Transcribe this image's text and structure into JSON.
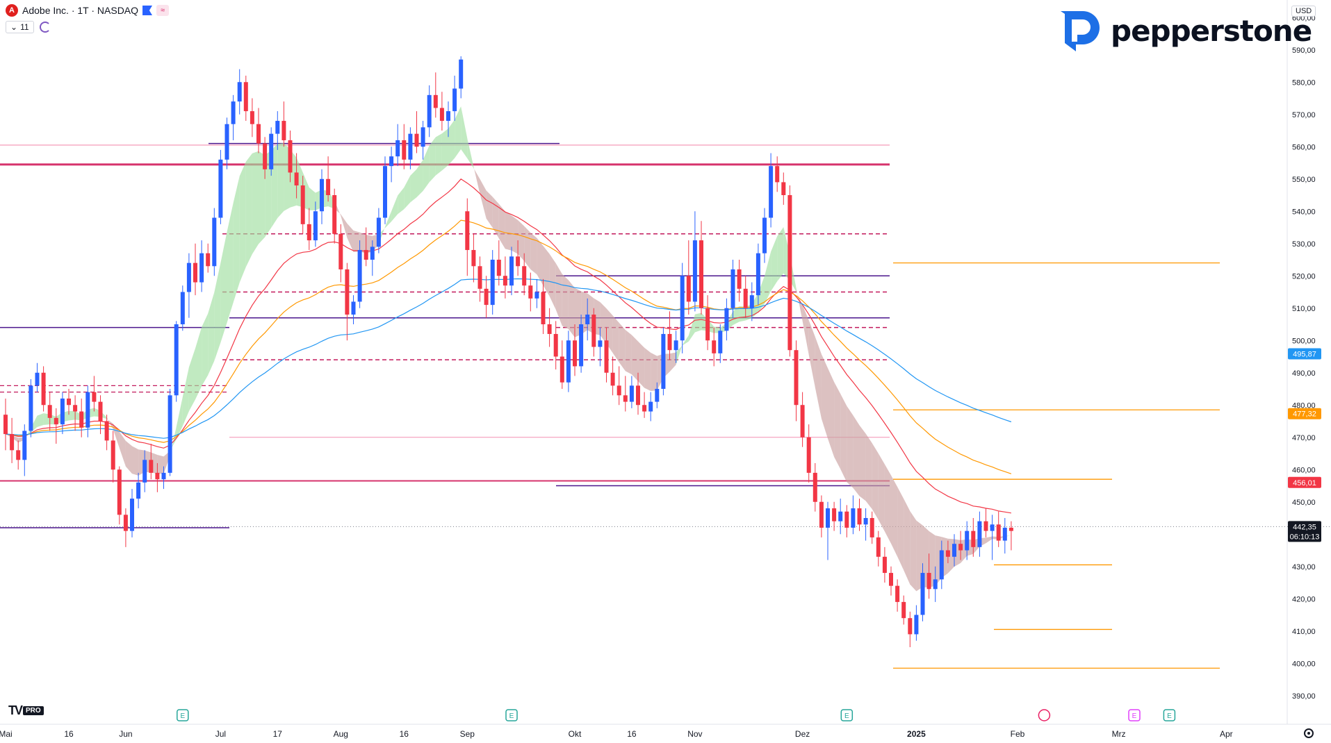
{
  "header": {
    "symbol_icon_letter": "A",
    "title": "Adobe Inc. · 1T · NASDAQ",
    "indicator_count": "11"
  },
  "currency": "USD",
  "brand": "pepperstone",
  "tv_pro": "PRO",
  "colors": {
    "up": "#2962ff",
    "down": "#f23645",
    "ma_red": "#f23645",
    "ma_orange": "#ff9800",
    "ma_blue": "#2196f3",
    "purple": "#4a148c",
    "magenta": "#c2185b",
    "band_green": "#9fdf9f",
    "band_red": "#c9a0a0"
  },
  "chart_data": {
    "type": "candlestick",
    "ylim": [
      385,
      605
    ],
    "y_ticks": [
      "600,00",
      "590,00",
      "580,00",
      "570,00",
      "560,00",
      "550,00",
      "540,00",
      "530,00",
      "520,00",
      "510,00",
      "500,00",
      "490,00",
      "480,00",
      "470,00",
      "460,00",
      "450,00",
      "440,00",
      "430,00",
      "420,00",
      "410,00",
      "400,00",
      "390,00"
    ],
    "y_tick_values": [
      600,
      590,
      580,
      570,
      560,
      550,
      540,
      530,
      520,
      510,
      500,
      490,
      480,
      470,
      460,
      450,
      440,
      430,
      420,
      410,
      400,
      390
    ],
    "x_labels": [
      "Mai",
      "16",
      "Jun",
      "Jul",
      "17",
      "Aug",
      "16",
      "Sep",
      "Okt",
      "16",
      "Nov",
      "Dez",
      "2025",
      "Feb",
      "Mrz",
      "Apr"
    ],
    "x_label_index": [
      0,
      10,
      19,
      34,
      43,
      53,
      63,
      73,
      90,
      99,
      109,
      126,
      144,
      160,
      176,
      193
    ],
    "earnings_index": [
      28,
      80,
      133,
      184
    ],
    "dividend_index": [
      164
    ],
    "price_labels": [
      {
        "text": "495,87",
        "value": 495.87,
        "color": "#2196f3"
      },
      {
        "text": "477,32",
        "value": 477.32,
        "color": "#ff9800"
      },
      {
        "text": "456,01",
        "value": 456.01,
        "color": "#f23645"
      },
      {
        "text": "442,35",
        "value": 442.35,
        "color": "#131722",
        "countdown": "06:10:13"
      }
    ],
    "candles": [
      [
        0,
        477,
        482,
        466,
        471
      ],
      [
        1,
        471,
        476,
        462,
        466
      ],
      [
        2,
        466,
        469,
        460,
        463
      ],
      [
        3,
        463,
        474,
        458,
        472
      ],
      [
        4,
        472,
        488,
        470,
        486
      ],
      [
        5,
        486,
        493,
        484,
        490
      ],
      [
        6,
        490,
        492,
        478,
        480
      ],
      [
        7,
        480,
        484,
        472,
        476
      ],
      [
        8,
        476,
        479,
        468,
        474
      ],
      [
        9,
        474,
        484,
        471,
        482
      ],
      [
        10,
        482,
        485,
        477,
        480
      ],
      [
        11,
        480,
        483,
        472,
        478
      ],
      [
        12,
        478,
        482,
        470,
        473
      ],
      [
        13,
        473,
        486,
        470,
        484
      ],
      [
        14,
        484,
        489,
        478,
        481
      ],
      [
        15,
        481,
        483,
        471,
        475
      ],
      [
        16,
        475,
        477,
        466,
        469
      ],
      [
        17,
        469,
        472,
        456,
        460
      ],
      [
        18,
        460,
        461,
        443,
        446
      ],
      [
        19,
        446,
        448,
        436,
        441
      ],
      [
        20,
        441,
        454,
        439,
        451
      ],
      [
        21,
        451,
        459,
        448,
        456
      ],
      [
        22,
        456,
        466,
        453,
        463
      ],
      [
        23,
        463,
        468,
        457,
        459
      ],
      [
        24,
        459,
        462,
        453,
        457
      ],
      [
        25,
        457,
        461,
        454,
        459
      ],
      [
        26,
        459,
        485,
        458,
        483
      ],
      [
        27,
        483,
        506,
        481,
        505
      ],
      [
        28,
        505,
        517,
        503,
        515
      ],
      [
        29,
        515,
        527,
        507,
        524
      ],
      [
        30,
        524,
        530,
        514,
        518
      ],
      [
        31,
        518,
        531,
        515,
        527
      ],
      [
        32,
        527,
        530,
        521,
        523
      ],
      [
        33,
        523,
        541,
        520,
        538
      ],
      [
        34,
        538,
        559,
        536,
        556
      ],
      [
        35,
        556,
        569,
        553,
        567
      ],
      [
        36,
        567,
        576,
        562,
        574
      ],
      [
        37,
        574,
        584,
        570,
        580
      ],
      [
        38,
        580,
        582,
        568,
        571
      ],
      [
        39,
        571,
        575,
        563,
        567
      ],
      [
        40,
        567,
        572,
        558,
        561
      ],
      [
        41,
        561,
        563,
        550,
        553
      ],
      [
        42,
        553,
        566,
        551,
        564
      ],
      [
        43,
        564,
        571,
        559,
        568
      ],
      [
        44,
        568,
        574,
        560,
        562
      ],
      [
        45,
        562,
        565,
        549,
        552
      ],
      [
        46,
        552,
        558,
        544,
        548
      ],
      [
        47,
        548,
        551,
        533,
        536
      ],
      [
        48,
        536,
        541,
        528,
        531
      ],
      [
        49,
        531,
        543,
        529,
        540
      ],
      [
        50,
        540,
        553,
        536,
        550
      ],
      [
        51,
        550,
        557,
        543,
        545
      ],
      [
        52,
        545,
        547,
        530,
        533
      ],
      [
        53,
        533,
        536,
        518,
        522
      ],
      [
        54,
        522,
        524,
        500,
        508
      ],
      [
        55,
        508,
        514,
        505,
        512
      ],
      [
        56,
        512,
        531,
        510,
        528
      ],
      [
        57,
        528,
        535,
        523,
        525
      ],
      [
        58,
        525,
        531,
        520,
        529
      ],
      [
        59,
        529,
        541,
        527,
        538
      ],
      [
        60,
        538,
        557,
        536,
        554
      ],
      [
        61,
        554,
        560,
        549,
        557
      ],
      [
        62,
        557,
        567,
        554,
        562
      ],
      [
        63,
        562,
        567,
        553,
        556
      ],
      [
        64,
        556,
        566,
        553,
        564
      ],
      [
        65,
        564,
        571,
        558,
        560
      ],
      [
        66,
        560,
        568,
        556,
        566
      ],
      [
        67,
        566,
        579,
        563,
        576
      ],
      [
        68,
        576,
        583,
        569,
        572
      ],
      [
        69,
        572,
        577,
        565,
        568
      ],
      [
        70,
        568,
        574,
        563,
        571
      ],
      [
        71,
        571,
        582,
        568,
        578
      ],
      [
        72,
        578,
        588,
        575,
        587
      ],
      [
        73,
        540,
        544,
        520,
        528
      ],
      [
        74,
        528,
        533,
        518,
        523
      ],
      [
        75,
        523,
        526,
        512,
        516
      ],
      [
        76,
        516,
        520,
        507,
        511
      ],
      [
        77,
        511,
        528,
        508,
        525
      ],
      [
        78,
        525,
        531,
        517,
        520
      ],
      [
        79,
        520,
        526,
        513,
        517
      ],
      [
        80,
        517,
        529,
        514,
        526
      ],
      [
        81,
        526,
        531,
        520,
        523
      ],
      [
        82,
        523,
        527,
        514,
        517
      ],
      [
        83,
        517,
        521,
        509,
        513
      ],
      [
        84,
        513,
        519,
        510,
        515
      ],
      [
        85,
        515,
        519,
        502,
        505
      ],
      [
        86,
        505,
        510,
        498,
        502
      ],
      [
        87,
        502,
        506,
        491,
        495
      ],
      [
        88,
        495,
        500,
        485,
        487
      ],
      [
        89,
        487,
        503,
        484,
        500
      ],
      [
        90,
        500,
        505,
        489,
        492
      ],
      [
        91,
        492,
        508,
        490,
        505
      ],
      [
        92,
        505,
        513,
        500,
        508
      ],
      [
        93,
        508,
        510,
        495,
        498
      ],
      [
        94,
        498,
        504,
        492,
        500
      ],
      [
        95,
        500,
        504,
        487,
        490
      ],
      [
        96,
        490,
        495,
        483,
        486
      ],
      [
        97,
        486,
        492,
        480,
        483
      ],
      [
        98,
        483,
        489,
        478,
        481
      ],
      [
        99,
        481,
        489,
        479,
        486
      ],
      [
        100,
        486,
        490,
        477,
        480
      ],
      [
        101,
        480,
        484,
        476,
        478
      ],
      [
        102,
        478,
        484,
        475,
        481
      ],
      [
        103,
        481,
        487,
        479,
        485
      ],
      [
        104,
        485,
        504,
        483,
        502
      ],
      [
        105,
        502,
        509,
        494,
        497
      ],
      [
        106,
        497,
        503,
        493,
        500
      ],
      [
        107,
        500,
        524,
        496,
        520
      ],
      [
        108,
        520,
        531,
        508,
        512
      ],
      [
        109,
        512,
        540,
        509,
        531
      ],
      [
        110,
        531,
        537,
        508,
        510
      ],
      [
        111,
        510,
        514,
        497,
        500
      ],
      [
        112,
        500,
        504,
        492,
        496
      ],
      [
        113,
        496,
        505,
        493,
        503
      ],
      [
        114,
        503,
        513,
        500,
        510
      ],
      [
        115,
        510,
        525,
        507,
        522
      ],
      [
        116,
        522,
        525,
        512,
        516
      ],
      [
        117,
        516,
        520,
        507,
        510
      ],
      [
        118,
        510,
        518,
        506,
        514
      ],
      [
        119,
        514,
        530,
        511,
        527
      ],
      [
        120,
        527,
        541,
        524,
        538
      ],
      [
        121,
        538,
        558,
        535,
        554
      ],
      [
        122,
        554,
        557,
        546,
        549
      ],
      [
        123,
        549,
        552,
        542,
        545
      ],
      [
        124,
        545,
        548,
        495,
        497
      ],
      [
        125,
        497,
        500,
        475,
        480
      ],
      [
        126,
        480,
        484,
        467,
        470
      ],
      [
        127,
        470,
        474,
        456,
        459
      ],
      [
        128,
        459,
        462,
        447,
        450
      ],
      [
        129,
        450,
        452,
        439,
        442
      ],
      [
        130,
        442,
        450,
        432,
        448
      ],
      [
        131,
        448,
        450,
        441,
        444
      ],
      [
        132,
        444,
        451,
        440,
        447
      ],
      [
        133,
        447,
        449,
        439,
        442
      ],
      [
        134,
        442,
        452,
        440,
        448
      ],
      [
        135,
        448,
        451,
        441,
        443
      ],
      [
        136,
        443,
        448,
        438,
        445
      ],
      [
        137,
        445,
        447,
        437,
        439
      ],
      [
        138,
        439,
        441,
        430,
        433
      ],
      [
        139,
        433,
        436,
        425,
        428
      ],
      [
        140,
        428,
        430,
        421,
        424
      ],
      [
        141,
        424,
        426,
        416,
        419
      ],
      [
        142,
        419,
        421,
        412,
        414
      ],
      [
        143,
        414,
        416,
        405,
        409
      ],
      [
        144,
        409,
        418,
        407,
        415
      ],
      [
        145,
        415,
        431,
        413,
        428
      ],
      [
        146,
        428,
        434,
        420,
        423
      ],
      [
        147,
        423,
        430,
        419,
        426
      ],
      [
        148,
        426,
        438,
        423,
        435
      ],
      [
        149,
        435,
        438,
        431,
        433
      ],
      [
        150,
        433,
        440,
        430,
        437
      ],
      [
        151,
        437,
        441,
        432,
        435
      ],
      [
        152,
        435,
        444,
        432,
        441
      ],
      [
        153,
        441,
        445,
        433,
        436
      ],
      [
        154,
        436,
        447,
        433,
        444
      ],
      [
        155,
        444,
        448,
        439,
        441
      ],
      [
        156,
        441,
        446,
        432,
        443
      ],
      [
        157,
        443,
        447,
        436,
        438
      ],
      [
        158,
        438,
        445,
        434,
        442
      ],
      [
        159,
        442,
        444,
        435,
        441
      ]
    ]
  }
}
